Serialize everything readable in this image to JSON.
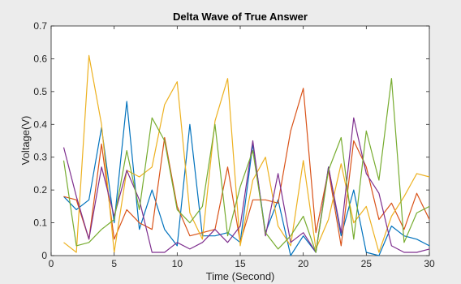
{
  "chart_data": {
    "type": "line",
    "title": "Delta Wave of True Answer",
    "xlabel": "Time (Second)",
    "ylabel": "Voltage(V)",
    "xlim": [
      0,
      30
    ],
    "ylim": [
      0,
      0.7
    ],
    "xticks": [
      "0",
      "5",
      "10",
      "15",
      "20",
      "25",
      "30"
    ],
    "yticks": [
      "0",
      "0.1",
      "0.2",
      "0.3",
      "0.4",
      "0.5",
      "0.6",
      "0.7"
    ],
    "grid": false,
    "legend": "none",
    "x": [
      1,
      2,
      3,
      4,
      5,
      6,
      7,
      8,
      9,
      10,
      11,
      12,
      13,
      14,
      15,
      16,
      17,
      18,
      19,
      20,
      21,
      22,
      23,
      24,
      25,
      26,
      27,
      28,
      29,
      30
    ],
    "series": [
      {
        "color": "#0072BD",
        "values": [
          0.18,
          0.14,
          0.17,
          0.39,
          0.1,
          0.47,
          0.08,
          0.2,
          0.08,
          0.03,
          0.4,
          0.06,
          0.06,
          0.07,
          0.04,
          0.34,
          0.07,
          0.17,
          0.0,
          0.06,
          0.01,
          0.27,
          0.06,
          0.2,
          0.01,
          0.0,
          0.09,
          0.06,
          0.05,
          0.03
        ]
      },
      {
        "color": "#D95319",
        "values": [
          0.18,
          0.17,
          0.05,
          0.34,
          0.05,
          0.14,
          0.1,
          0.08,
          0.36,
          0.15,
          0.06,
          0.07,
          0.08,
          0.27,
          0.04,
          0.17,
          0.17,
          0.16,
          0.38,
          0.51,
          0.07,
          0.26,
          0.03,
          0.35,
          0.27,
          0.11,
          0.16,
          0.08,
          0.19,
          0.11
        ]
      },
      {
        "color": "#EDB120",
        "values": [
          0.04,
          0.01,
          0.61,
          0.4,
          0.01,
          0.26,
          0.24,
          0.27,
          0.46,
          0.53,
          0.13,
          0.05,
          0.41,
          0.54,
          0.03,
          0.23,
          0.3,
          0.09,
          0.03,
          0.29,
          0.02,
          0.11,
          0.28,
          0.1,
          0.15,
          0.01,
          0.12,
          0.18,
          0.25,
          0.24
        ]
      },
      {
        "color": "#7E2F8E",
        "values": [
          0.33,
          0.18,
          0.05,
          0.27,
          0.12,
          0.26,
          0.17,
          0.01,
          0.01,
          0.04,
          0.02,
          0.04,
          0.08,
          0.04,
          0.09,
          0.35,
          0.06,
          0.25,
          0.04,
          0.07,
          0.01,
          0.27,
          0.07,
          0.42,
          0.25,
          0.19,
          0.03,
          0.01,
          0.01,
          0.02
        ]
      },
      {
        "color": "#77AC30",
        "values": [
          0.29,
          0.03,
          0.04,
          0.08,
          0.11,
          0.32,
          0.14,
          0.42,
          0.35,
          0.14,
          0.1,
          0.15,
          0.4,
          0.06,
          0.21,
          0.32,
          0.07,
          0.02,
          0.06,
          0.12,
          0.01,
          0.26,
          0.36,
          0.05,
          0.38,
          0.23,
          0.54,
          0.04,
          0.13,
          0.15
        ]
      }
    ]
  }
}
